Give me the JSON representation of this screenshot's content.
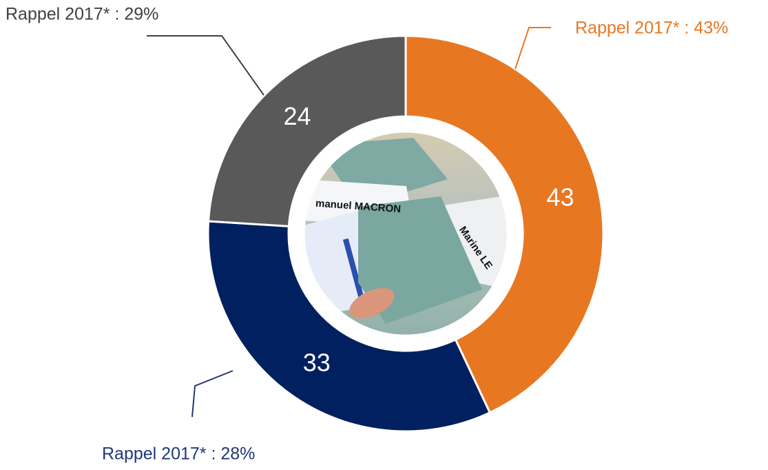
{
  "chart_data": {
    "type": "pie",
    "donut": true,
    "values": [
      43,
      33,
      24
    ],
    "colors": [
      "#e87722",
      "#002060",
      "#595959"
    ],
    "annotations": [
      "Rappel 2017* : 43%",
      "Rappel 2017* : 28%",
      "Rappel 2017* : 29%"
    ],
    "annotation_colors": [
      "#e87722",
      "#1f3877",
      "#404040"
    ],
    "image_texts": [
      "manuel MACRON",
      "Marine LE"
    ]
  }
}
